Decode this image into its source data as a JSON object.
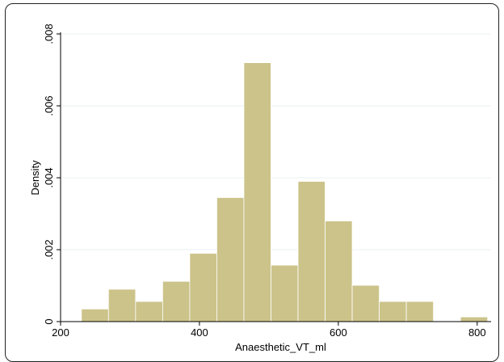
{
  "chart_data": {
    "type": "bar",
    "title": "",
    "xlabel": "Anaesthetic_VT_ml",
    "ylabel": "Density",
    "xlim": [
      200,
      820
    ],
    "ylim": [
      0,
      0.008
    ],
    "x_ticks": [
      200,
      400,
      600,
      800
    ],
    "x_tick_labels": [
      "200",
      "400",
      "600",
      "800"
    ],
    "y_ticks": [
      0,
      0.002,
      0.004,
      0.006,
      0.008
    ],
    "y_tick_labels": [
      "0",
      ".002",
      ".004",
      ".006",
      ".008"
    ],
    "grid": true,
    "bar_color": "#ccc38a",
    "bar_edge_color": "#ffffff",
    "bins": [
      {
        "start": 230,
        "end": 269,
        "value": 0.00035
      },
      {
        "start": 269,
        "end": 308,
        "value": 0.0009
      },
      {
        "start": 308,
        "end": 347,
        "value": 0.00056
      },
      {
        "start": 347,
        "end": 386,
        "value": 0.00112
      },
      {
        "start": 386,
        "end": 425,
        "value": 0.0019
      },
      {
        "start": 425,
        "end": 464,
        "value": 0.00345
      },
      {
        "start": 464,
        "end": 503,
        "value": 0.0072
      },
      {
        "start": 503,
        "end": 542,
        "value": 0.00157
      },
      {
        "start": 542,
        "end": 581,
        "value": 0.0039
      },
      {
        "start": 581,
        "end": 620,
        "value": 0.0028
      },
      {
        "start": 620,
        "end": 659,
        "value": 0.00101
      },
      {
        "start": 659,
        "end": 698,
        "value": 0.00056
      },
      {
        "start": 698,
        "end": 737,
        "value": 0.00056
      },
      {
        "start": 776,
        "end": 815,
        "value": 0.00013
      }
    ]
  }
}
